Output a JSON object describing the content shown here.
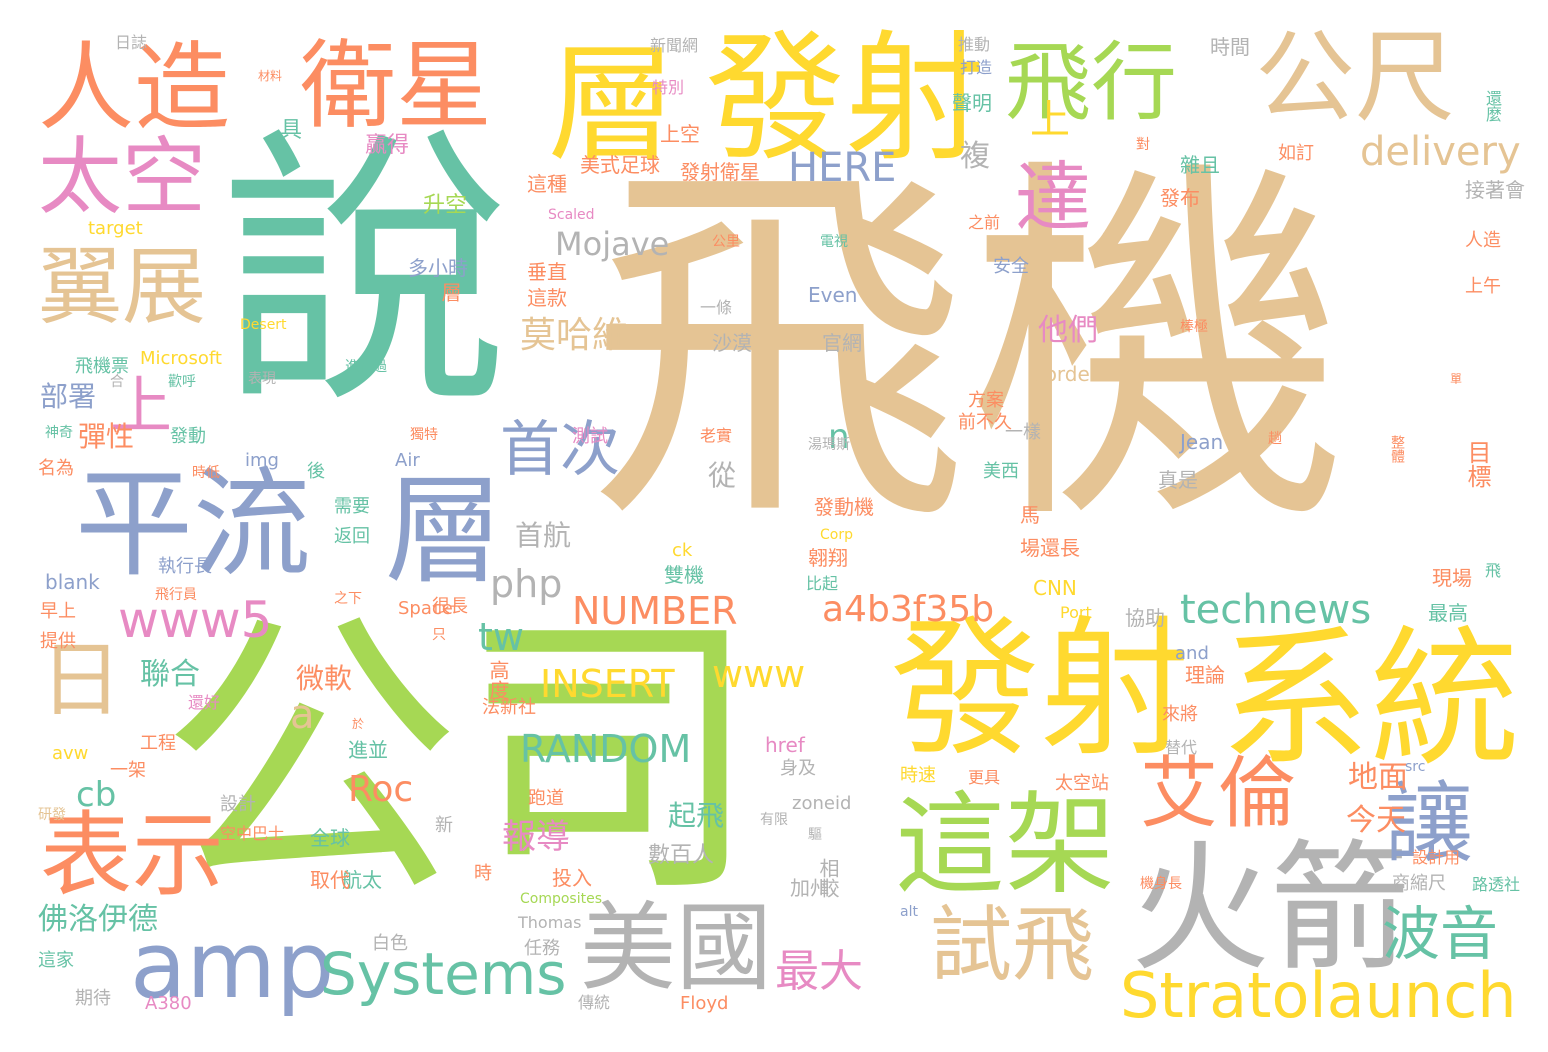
{
  "palette": {
    "tan": "#E5C494",
    "teal": "#66C2A5",
    "green": "#A6D854",
    "yellow": "#FFD92F",
    "orange": "#FC8D62",
    "blue": "#8DA0CB",
    "pink": "#E78AC3",
    "gray": "#B3B3B3"
  },
  "words": [
    {
      "text": "飛機",
      "color": "tan"
    },
    {
      "text": "說",
      "color": "teal"
    },
    {
      "text": "公司",
      "color": "green"
    },
    {
      "text": "發射",
      "color": "yellow"
    },
    {
      "text": "系統",
      "color": "yellow"
    },
    {
      "text": "發射",
      "color": "yellow"
    },
    {
      "text": "層",
      "color": "yellow"
    },
    {
      "text": "平流",
      "color": "blue"
    },
    {
      "text": "層",
      "color": "blue"
    },
    {
      "text": "人造",
      "color": "orange"
    },
    {
      "text": "衛星",
      "color": "orange"
    },
    {
      "text": "公尺",
      "color": "tan"
    },
    {
      "text": "飛行",
      "color": "green"
    },
    {
      "text": "上",
      "color": "yellow"
    },
    {
      "text": "火箭",
      "color": "gray"
    },
    {
      "text": "這架",
      "color": "green"
    },
    {
      "text": "太空",
      "color": "pink"
    },
    {
      "text": "翼展",
      "color": "tan"
    },
    {
      "text": "美國",
      "color": "gray"
    },
    {
      "text": "amp",
      "color": "blue"
    },
    {
      "text": "日",
      "color": "tan"
    },
    {
      "text": "表示",
      "color": "orange"
    },
    {
      "text": "艾倫",
      "color": "orange"
    },
    {
      "text": "試飛",
      "color": "tan"
    },
    {
      "text": "讓",
      "color": "blue"
    },
    {
      "text": "達",
      "color": "pink"
    },
    {
      "text": "上",
      "color": "pink"
    },
    {
      "text": "Stratolaunch",
      "color": "yellow"
    },
    {
      "text": "Systems",
      "color": "teal"
    },
    {
      "text": "www5",
      "color": "pink"
    },
    {
      "text": "首次",
      "color": "blue"
    },
    {
      "text": "波音",
      "color": "teal"
    },
    {
      "text": "a4b3f35b",
      "color": "orange"
    },
    {
      "text": "technews",
      "color": "teal"
    },
    {
      "text": "delivery",
      "color": "tan"
    },
    {
      "text": "HERE",
      "color": "blue"
    },
    {
      "text": "Mojave",
      "color": "gray"
    },
    {
      "text": "NUMBER",
      "color": "orange"
    },
    {
      "text": "RANDOM",
      "color": "teal"
    },
    {
      "text": "INSERT",
      "color": "yellow"
    },
    {
      "text": "www",
      "color": "yellow"
    },
    {
      "text": "php",
      "color": "gray"
    },
    {
      "text": "tw",
      "color": "teal"
    },
    {
      "text": "莫哈維",
      "color": "tan"
    },
    {
      "text": "最大",
      "color": "pink"
    },
    {
      "text": "報導",
      "color": "pink"
    },
    {
      "text": "Roc",
      "color": "orange"
    },
    {
      "text": "cb",
      "color": "teal"
    },
    {
      "text": "a",
      "color": "tan"
    },
    {
      "text": "n",
      "color": "teal"
    },
    {
      "text": "首航",
      "color": "gray"
    },
    {
      "text": "起飛",
      "color": "teal"
    },
    {
      "text": "數百人",
      "color": "gray"
    },
    {
      "text": "佛洛伊德",
      "color": "teal"
    },
    {
      "text": "聯合",
      "color": "teal"
    },
    {
      "text": "部署",
      "color": "blue"
    },
    {
      "text": "彈性",
      "color": "orange"
    },
    {
      "text": "他們",
      "color": "pink"
    },
    {
      "text": "地面",
      "color": "orange"
    },
    {
      "text": "今天",
      "color": "orange"
    },
    {
      "text": "微軟",
      "color": "orange"
    },
    {
      "text": "從",
      "color": "gray"
    },
    {
      "text": "複",
      "color": "gray"
    },
    {
      "text": "贏得",
      "color": "pink"
    },
    {
      "text": "具",
      "color": "teal"
    },
    {
      "text": "升空",
      "color": "green"
    },
    {
      "text": "這種",
      "color": "orange"
    },
    {
      "text": "垂直",
      "color": "orange"
    },
    {
      "text": "這款",
      "color": "orange"
    },
    {
      "text": "多小時",
      "color": "blue"
    },
    {
      "text": "層",
      "color": "orange"
    },
    {
      "text": "美式足球",
      "color": "orange"
    },
    {
      "text": "發射衛星",
      "color": "orange"
    },
    {
      "text": "上空",
      "color": "orange"
    },
    {
      "text": "特別",
      "color": "pink"
    },
    {
      "text": "新聞網",
      "color": "gray"
    },
    {
      "text": "時間",
      "color": "gray"
    },
    {
      "text": "聲明",
      "color": "teal"
    },
    {
      "text": "推動",
      "color": "gray"
    },
    {
      "text": "打造",
      "color": "blue"
    },
    {
      "text": "雜且",
      "color": "teal"
    },
    {
      "text": "接著會",
      "color": "gray"
    },
    {
      "text": "發布",
      "color": "orange"
    },
    {
      "text": "人造",
      "color": "orange"
    },
    {
      "text": "上午",
      "color": "orange"
    },
    {
      "text": "如訂",
      "color": "orange"
    },
    {
      "text": "target",
      "color": "yellow"
    },
    {
      "text": "Desert",
      "color": "yellow"
    },
    {
      "text": "Microsoft",
      "color": "yellow"
    },
    {
      "text": "border",
      "color": "tan"
    },
    {
      "text": "Jean",
      "color": "blue"
    },
    {
      "text": "Air",
      "color": "blue"
    },
    {
      "text": "img",
      "color": "blue"
    },
    {
      "text": "ck",
      "color": "yellow"
    },
    {
      "text": "Corp",
      "color": "yellow"
    },
    {
      "text": "CNN",
      "color": "yellow"
    },
    {
      "text": "blank",
      "color": "blue"
    },
    {
      "text": "Space",
      "color": "orange"
    },
    {
      "text": "and",
      "color": "blue"
    },
    {
      "text": "Port",
      "color": "yellow"
    },
    {
      "text": "avw",
      "color": "yellow"
    },
    {
      "text": "href",
      "color": "pink"
    },
    {
      "text": "zoneid",
      "color": "gray"
    },
    {
      "text": "src",
      "color": "blue"
    },
    {
      "text": "Composites",
      "color": "green"
    },
    {
      "text": "Thomas",
      "color": "gray"
    },
    {
      "text": "alt",
      "color": "blue"
    },
    {
      "text": "A380",
      "color": "pink"
    },
    {
      "text": "Floyd",
      "color": "orange"
    },
    {
      "text": "Scaled",
      "color": "pink"
    },
    {
      "text": "Even",
      "color": "blue"
    },
    {
      "text": "官網",
      "color": "gray"
    },
    {
      "text": "沙漠",
      "color": "gray"
    },
    {
      "text": "安全",
      "color": "blue"
    },
    {
      "text": "方案",
      "color": "orange"
    },
    {
      "text": "前不久",
      "color": "orange"
    },
    {
      "text": "一樣",
      "color": "gray"
    },
    {
      "text": "美西",
      "color": "teal"
    },
    {
      "text": "真是",
      "color": "gray"
    },
    {
      "text": "目標",
      "color": "orange"
    },
    {
      "text": "馬",
      "color": "orange"
    },
    {
      "text": "場還長",
      "color": "orange"
    },
    {
      "text": "發動機",
      "color": "orange"
    },
    {
      "text": "翱翔",
      "color": "orange"
    },
    {
      "text": "雙機",
      "color": "teal"
    },
    {
      "text": "比起",
      "color": "teal"
    },
    {
      "text": "現場",
      "color": "orange"
    },
    {
      "text": "最高",
      "color": "teal"
    },
    {
      "text": "協助",
      "color": "gray"
    },
    {
      "text": "理論",
      "color": "orange"
    },
    {
      "text": "來將",
      "color": "orange"
    },
    {
      "text": "替代",
      "color": "gray"
    },
    {
      "text": "身及",
      "color": "gray"
    },
    {
      "text": "時速",
      "color": "yellow"
    },
    {
      "text": "更具",
      "color": "orange"
    },
    {
      "text": "太空站",
      "color": "orange"
    },
    {
      "text": "商縮尺",
      "color": "gray"
    },
    {
      "text": "設計用",
      "color": "orange"
    },
    {
      "text": "路透社",
      "color": "teal"
    },
    {
      "text": "加州",
      "color": "gray"
    },
    {
      "text": "相較",
      "color": "gray"
    },
    {
      "text": "投入",
      "color": "orange"
    },
    {
      "text": "時",
      "color": "orange"
    },
    {
      "text": "航太",
      "color": "teal"
    },
    {
      "text": "取代",
      "color": "orange"
    },
    {
      "text": "全球",
      "color": "teal"
    },
    {
      "text": "新",
      "color": "gray"
    },
    {
      "text": "跑道",
      "color": "orange"
    },
    {
      "text": "任務",
      "color": "gray"
    },
    {
      "text": "白色",
      "color": "gray"
    },
    {
      "text": "傳統",
      "color": "gray"
    },
    {
      "text": "設計",
      "color": "gray"
    },
    {
      "text": "空中巴士",
      "color": "orange"
    },
    {
      "text": "工程",
      "color": "orange"
    },
    {
      "text": "一架",
      "color": "orange"
    },
    {
      "text": "研發",
      "color": "tan"
    },
    {
      "text": "這家",
      "color": "teal"
    },
    {
      "text": "期待",
      "color": "gray"
    },
    {
      "text": "提供",
      "color": "orange"
    },
    {
      "text": "早上",
      "color": "orange"
    },
    {
      "text": "執行長",
      "color": "blue"
    },
    {
      "text": "返回",
      "color": "teal"
    },
    {
      "text": "需要",
      "color": "teal"
    },
    {
      "text": "後",
      "color": "teal"
    },
    {
      "text": "發動",
      "color": "teal"
    },
    {
      "text": "名為",
      "color": "orange"
    },
    {
      "text": "神奇",
      "color": "teal"
    },
    {
      "text": "飛機票",
      "color": "teal"
    },
    {
      "text": "合",
      "color": "gray"
    },
    {
      "text": "歡呼",
      "color": "teal"
    },
    {
      "text": "表現",
      "color": "gray"
    },
    {
      "text": "進行過",
      "color": "teal"
    },
    {
      "text": "獨特",
      "color": "orange"
    },
    {
      "text": "測試",
      "color": "pink"
    },
    {
      "text": "老實",
      "color": "orange"
    },
    {
      "text": "法新社",
      "color": "orange"
    },
    {
      "text": "高度",
      "color": "orange"
    },
    {
      "text": "很長",
      "color": "orange"
    },
    {
      "text": "只",
      "color": "orange"
    },
    {
      "text": "進並",
      "color": "teal"
    },
    {
      "text": "還好",
      "color": "pink"
    },
    {
      "text": "於",
      "color": "orange"
    },
    {
      "text": "一條",
      "color": "gray"
    },
    {
      "text": "日誌",
      "color": "gray"
    },
    {
      "text": "材料",
      "color": "orange"
    },
    {
      "text": "棒極",
      "color": "orange"
    },
    {
      "text": "公里",
      "color": "orange"
    },
    {
      "text": "電視",
      "color": "teal"
    },
    {
      "text": "之前",
      "color": "orange"
    },
    {
      "text": "還麼",
      "color": "teal"
    },
    {
      "text": "單",
      "color": "orange"
    },
    {
      "text": "趟",
      "color": "orange"
    },
    {
      "text": "整體",
      "color": "orange"
    },
    {
      "text": "湯瑪斯",
      "color": "gray"
    },
    {
      "text": "飛",
      "color": "teal"
    },
    {
      "text": "有限",
      "color": "gray"
    },
    {
      "text": "驅",
      "color": "gray"
    },
    {
      "text": "對",
      "color": "orange"
    },
    {
      "text": "機身長",
      "color": "orange"
    },
    {
      "text": "飛行員",
      "color": "orange"
    },
    {
      "text": "之下",
      "color": "orange"
    },
    {
      "text": "時低",
      "color": "orange"
    },
    {
      "text": "擴",
      "color": "orange"
    },
    {
      "text": "懸",
      "color": "orange"
    }
  ]
}
